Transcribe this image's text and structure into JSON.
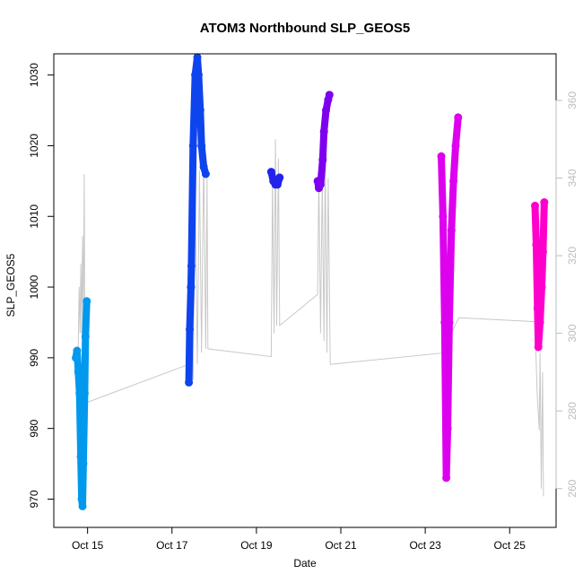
{
  "chart_data": {
    "type": "line",
    "title": "ATOM3 Northbound SLP_GEOS5",
    "xlabel": "Date",
    "ylabel": "SLP_GEOS5",
    "x_ticks": [
      "Oct 15",
      "Oct 17",
      "Oct 19",
      "Oct 21",
      "Oct 23",
      "Oct 25"
    ],
    "x_tick_days": [
      15,
      17,
      19,
      21,
      23,
      25
    ],
    "xlim": [
      14.2,
      26.1
    ],
    "ylim": [
      966,
      1033
    ],
    "y_ticks": [
      970,
      980,
      990,
      1000,
      1010,
      1020,
      1030
    ],
    "y2lim": [
      250,
      372
    ],
    "y2_ticks": [
      260,
      280,
      300,
      320,
      340,
      360
    ],
    "grid": false,
    "colors": {
      "segment_1": "#0099ee",
      "segment_2": "#0d44ee",
      "segment_3": "#2323ee",
      "segment_4": "#7d00ee",
      "segment_5": "#dd00ee",
      "segment_6": "#ff00cc",
      "secondary": "#c8c8c8",
      "axis_right": "#bdbdbd"
    },
    "series": [
      {
        "values": [
          {
            "x": 14.72,
            "y": 990
          },
          {
            "x": 14.75,
            "y": 991
          },
          {
            "x": 14.78,
            "y": 988
          },
          {
            "x": 14.81,
            "y": 985
          },
          {
            "x": 14.84,
            "y": 976
          },
          {
            "x": 14.86,
            "y": 970
          },
          {
            "x": 14.88,
            "y": 969
          },
          {
            "x": 14.9,
            "y": 975
          },
          {
            "x": 14.93,
            "y": 985
          },
          {
            "x": 14.95,
            "y": 993
          },
          {
            "x": 14.98,
            "y": 998
          }
        ]
      },
      {
        "values": [
          {
            "x": 17.4,
            "y": 986.5
          },
          {
            "x": 17.42,
            "y": 994
          },
          {
            "x": 17.45,
            "y": 1000
          },
          {
            "x": 17.46,
            "y": 1003
          },
          {
            "x": 17.5,
            "y": 1020
          },
          {
            "x": 17.55,
            "y": 1030
          },
          {
            "x": 17.6,
            "y": 1032.5
          },
          {
            "x": 17.63,
            "y": 1030
          },
          {
            "x": 17.67,
            "y": 1025
          },
          {
            "x": 17.7,
            "y": 1020
          },
          {
            "x": 17.75,
            "y": 1017
          },
          {
            "x": 17.8,
            "y": 1016
          }
        ]
      },
      {
        "values": [
          {
            "x": 19.35,
            "y": 1016.3
          },
          {
            "x": 19.4,
            "y": 1015
          },
          {
            "x": 19.45,
            "y": 1014.5
          },
          {
            "x": 19.5,
            "y": 1014.5
          },
          {
            "x": 19.55,
            "y": 1015.5
          }
        ]
      },
      {
        "values": [
          {
            "x": 20.45,
            "y": 1015
          },
          {
            "x": 20.48,
            "y": 1014
          },
          {
            "x": 20.52,
            "y": 1014.5
          },
          {
            "x": 20.57,
            "y": 1018
          },
          {
            "x": 20.6,
            "y": 1022
          },
          {
            "x": 20.65,
            "y": 1025
          },
          {
            "x": 20.7,
            "y": 1026.5
          },
          {
            "x": 20.73,
            "y": 1027.2
          }
        ]
      },
      {
        "values": [
          {
            "x": 23.38,
            "y": 1018.5
          },
          {
            "x": 23.42,
            "y": 1010
          },
          {
            "x": 23.46,
            "y": 995
          },
          {
            "x": 23.5,
            "y": 973
          },
          {
            "x": 23.53,
            "y": 980
          },
          {
            "x": 23.57,
            "y": 995
          },
          {
            "x": 23.62,
            "y": 1008
          },
          {
            "x": 23.67,
            "y": 1015
          },
          {
            "x": 23.72,
            "y": 1020
          },
          {
            "x": 23.78,
            "y": 1024
          }
        ]
      },
      {
        "values": [
          {
            "x": 25.6,
            "y": 1011.5
          },
          {
            "x": 25.63,
            "y": 1006
          },
          {
            "x": 25.66,
            "y": 997
          },
          {
            "x": 25.68,
            "y": 991.5
          },
          {
            "x": 25.72,
            "y": 995
          },
          {
            "x": 25.76,
            "y": 1000
          },
          {
            "x": 25.79,
            "y": 1005
          },
          {
            "x": 25.82,
            "y": 1012
          }
        ]
      }
    ],
    "secondary_series": {
      "axis": "right",
      "values": [
        {
          "x": 14.75,
          "y": 295
        },
        {
          "x": 14.78,
          "y": 297
        },
        {
          "x": 14.8,
          "y": 312
        },
        {
          "x": 14.82,
          "y": 300
        },
        {
          "x": 14.84,
          "y": 318
        },
        {
          "x": 14.86,
          "y": 300
        },
        {
          "x": 14.88,
          "y": 325
        },
        {
          "x": 14.9,
          "y": 305
        },
        {
          "x": 14.92,
          "y": 341
        },
        {
          "x": 14.94,
          "y": 282
        },
        {
          "x": 17.4,
          "y": 292
        },
        {
          "x": 17.45,
          "y": 310
        },
        {
          "x": 17.5,
          "y": 288
        },
        {
          "x": 17.55,
          "y": 338
        },
        {
          "x": 17.6,
          "y": 292
        },
        {
          "x": 17.65,
          "y": 342
        },
        {
          "x": 17.7,
          "y": 295
        },
        {
          "x": 17.75,
          "y": 345
        },
        {
          "x": 17.8,
          "y": 296
        },
        {
          "x": 17.83,
          "y": 340
        },
        {
          "x": 17.85,
          "y": 296
        },
        {
          "x": 19.35,
          "y": 294
        },
        {
          "x": 19.38,
          "y": 340
        },
        {
          "x": 19.42,
          "y": 300
        },
        {
          "x": 19.45,
          "y": 350
        },
        {
          "x": 19.48,
          "y": 302
        },
        {
          "x": 19.52,
          "y": 345
        },
        {
          "x": 19.55,
          "y": 302
        },
        {
          "x": 20.45,
          "y": 310
        },
        {
          "x": 20.48,
          "y": 340
        },
        {
          "x": 20.52,
          "y": 300
        },
        {
          "x": 20.56,
          "y": 340
        },
        {
          "x": 20.6,
          "y": 298
        },
        {
          "x": 20.63,
          "y": 345
        },
        {
          "x": 20.67,
          "y": 295
        },
        {
          "x": 20.7,
          "y": 340
        },
        {
          "x": 20.75,
          "y": 292
        },
        {
          "x": 23.5,
          "y": 295
        },
        {
          "x": 23.55,
          "y": 296
        },
        {
          "x": 23.62,
          "y": 300
        },
        {
          "x": 23.7,
          "y": 302
        },
        {
          "x": 23.8,
          "y": 304
        },
        {
          "x": 25.6,
          "y": 303
        },
        {
          "x": 25.65,
          "y": 285
        },
        {
          "x": 25.7,
          "y": 275
        },
        {
          "x": 25.72,
          "y": 295
        },
        {
          "x": 25.75,
          "y": 260
        },
        {
          "x": 25.78,
          "y": 290
        },
        {
          "x": 25.8,
          "y": 258
        }
      ]
    }
  }
}
